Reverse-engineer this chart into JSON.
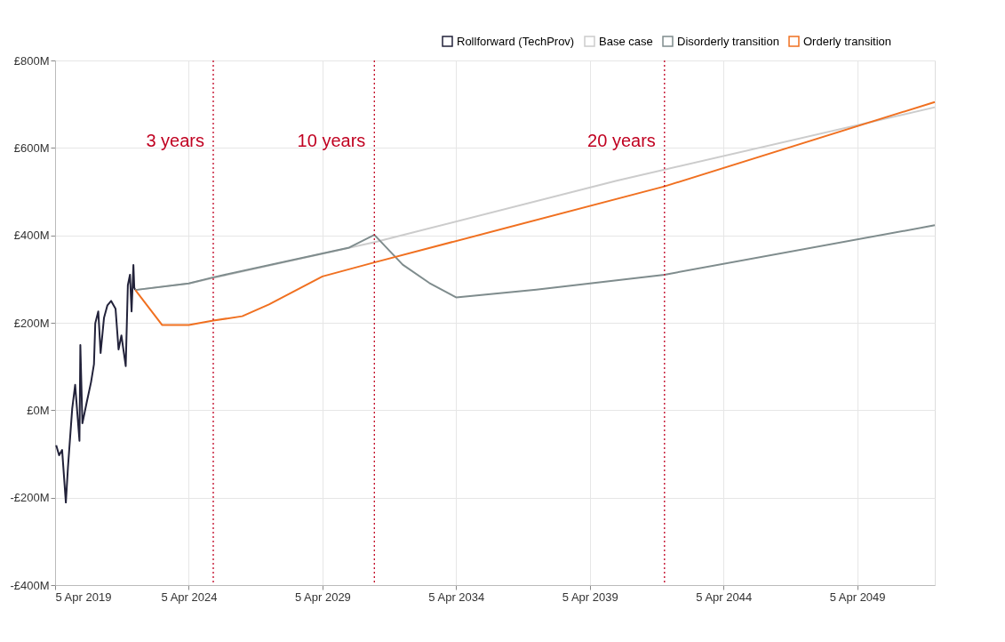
{
  "chart_data": {
    "type": "line",
    "xlim": [
      "2019-04-05",
      "2052-03-01"
    ],
    "xticks": [
      {
        "value": "2019-04-05",
        "label": "5 Apr 2019"
      },
      {
        "value": "2024-04-05",
        "label": "5 Apr 2024"
      },
      {
        "value": "2029-04-05",
        "label": "5 Apr 2029"
      },
      {
        "value": "2034-04-05",
        "label": "5 Apr 2034"
      },
      {
        "value": "2039-04-05",
        "label": "5 Apr 2039"
      },
      {
        "value": "2044-04-05",
        "label": "5 Apr 2044"
      },
      {
        "value": "2049-04-05",
        "label": "5 Apr 2049"
      }
    ],
    "ylim": [
      -400,
      800
    ],
    "yticks": [
      {
        "value": -400,
        "label": "-£400M"
      },
      {
        "value": -200,
        "label": "-£200M"
      },
      {
        "value": 0,
        "label": "£0M"
      },
      {
        "value": 200,
        "label": "£200M"
      },
      {
        "value": 400,
        "label": "£400M"
      },
      {
        "value": 600,
        "label": "£600M"
      },
      {
        "value": 800,
        "label": "£800M"
      }
    ],
    "grid": true,
    "legend": "top right",
    "marker": "none",
    "line_style": "solid",
    "series": [
      {
        "name": "Rollforward (TechProv)",
        "color": "#22223a",
        "x": [
          "2019-04-20",
          "2019-05-30",
          "2019-07-10",
          "2019-08-30",
          "2019-09-28",
          "2019-11-25",
          "2020-01-04",
          "2020-03-03",
          "2020-03-15",
          "2020-04-12",
          "2020-06-10",
          "2020-08-08",
          "2020-09-17",
          "2020-10-05",
          "2020-11-15",
          "2020-12-17",
          "2021-02-01",
          "2021-03-20",
          "2021-05-10",
          "2021-07-09",
          "2021-08-19",
          "2021-09-27",
          "2021-11-25",
          "2021-12-24",
          "2022-01-22",
          "2022-02-13",
          "2022-03-10",
          "2022-03-22",
          "2022-04-05"
        ],
        "values": [
          -80,
          -103,
          -91,
          -211,
          -130,
          4,
          58,
          -70,
          149,
          -30,
          18,
          64,
          105,
          199,
          226,
          131,
          211,
          240,
          250,
          232,
          139,
          171,
          101,
          286,
          310,
          226,
          332,
          280,
          275
        ]
      },
      {
        "name": "Base case",
        "color": "#cccccc",
        "x": [
          "2022-04-05",
          "2024-04-05",
          "2031-04-05",
          "2040-04-05",
          "2052-03-01"
        ],
        "values": [
          275,
          290,
          385,
          525,
          693
        ]
      },
      {
        "name": "Disorderly transition",
        "color": "#7f8c8d",
        "x": [
          "2022-04-05",
          "2024-04-05",
          "2025-03-05",
          "2030-04-05",
          "2031-03-15",
          "2032-04-05",
          "2033-04-05",
          "2034-04-05",
          "2037-04-05",
          "2042-01-20",
          "2052-03-01"
        ],
        "values": [
          275,
          290,
          304,
          372,
          401,
          333,
          291,
          258,
          276,
          310,
          423
        ]
      },
      {
        "name": "Orderly transition",
        "color": "#f07020",
        "x": [
          "2022-04-05",
          "2023-04-05",
          "2024-04-05",
          "2025-03-05",
          "2026-04-05",
          "2027-04-05",
          "2029-04-05",
          "2031-03-15",
          "2042-01-20",
          "2052-03-01"
        ],
        "values": [
          275,
          195,
          195,
          205,
          215,
          242,
          306,
          338,
          512,
          705
        ]
      }
    ],
    "ref_lines": [
      {
        "axis": "x",
        "value": "2025-03-05",
        "label": "3 years",
        "color": "#c00020",
        "line_style": "dotted"
      },
      {
        "axis": "x",
        "value": "2031-03-15",
        "label": "10 years",
        "color": "#c00020",
        "line_style": "dotted"
      },
      {
        "axis": "x",
        "value": "2042-01-20",
        "label": "20 years",
        "color": "#c00020",
        "line_style": "dotted"
      }
    ]
  }
}
